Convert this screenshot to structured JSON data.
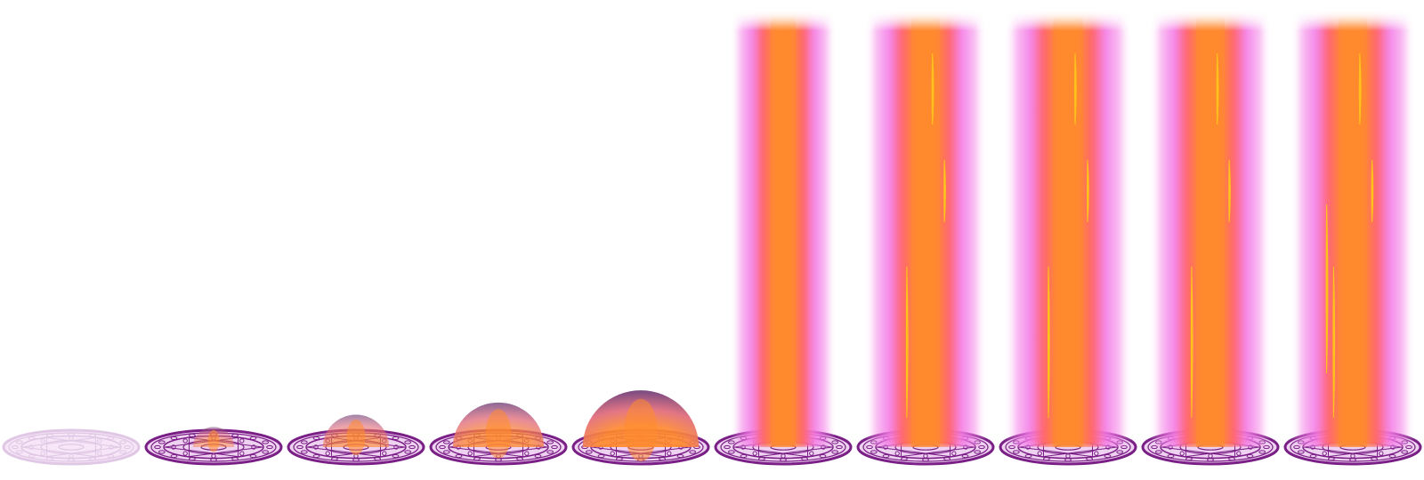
{
  "sprite_sheet": {
    "name": "",
    "frame_count": 10,
    "colors": {
      "circle_outline": "#7a1f86",
      "circle_fill": "#efd2f2",
      "circle_faint": "#c79bd0",
      "glow_magenta": "#f47ae6",
      "beam_pink": "#ff6670",
      "beam_core": "#ff8a2e",
      "beam_sparks": "#ffc21a",
      "dome_top": "#6a3a76",
      "dome_mid": "#e06a7a",
      "dome_core": "#ff8a2e",
      "background": "#ffffff"
    },
    "frames": [
      {
        "id": 1,
        "phase": "circle-appear",
        "circle_opacity": 0.55,
        "effect": "none",
        "growth": 0.0
      },
      {
        "id": 2,
        "phase": "dome-rise",
        "circle_opacity": 1.0,
        "effect": "dome",
        "growth": 0.2
      },
      {
        "id": 3,
        "phase": "dome-rise",
        "circle_opacity": 1.0,
        "effect": "dome",
        "growth": 0.45
      },
      {
        "id": 4,
        "phase": "dome-rise",
        "circle_opacity": 1.0,
        "effect": "dome",
        "growth": 0.7
      },
      {
        "id": 5,
        "phase": "dome-rise",
        "circle_opacity": 1.0,
        "effect": "dome",
        "growth": 0.95
      },
      {
        "id": 6,
        "phase": "pillar",
        "circle_opacity": 1.0,
        "effect": "beam",
        "growth": 0.6,
        "sparks": 0
      },
      {
        "id": 7,
        "phase": "pillar",
        "circle_opacity": 1.0,
        "effect": "beam",
        "growth": 0.9,
        "sparks": 3
      },
      {
        "id": 8,
        "phase": "pillar",
        "circle_opacity": 1.0,
        "effect": "beam",
        "growth": 1.0,
        "sparks": 3
      },
      {
        "id": 9,
        "phase": "pillar",
        "circle_opacity": 1.0,
        "effect": "beam",
        "growth": 0.9,
        "sparks": 3
      },
      {
        "id": 10,
        "phase": "pillar",
        "circle_opacity": 1.0,
        "effect": "beam",
        "growth": 0.95,
        "sparks": 4
      }
    ]
  }
}
